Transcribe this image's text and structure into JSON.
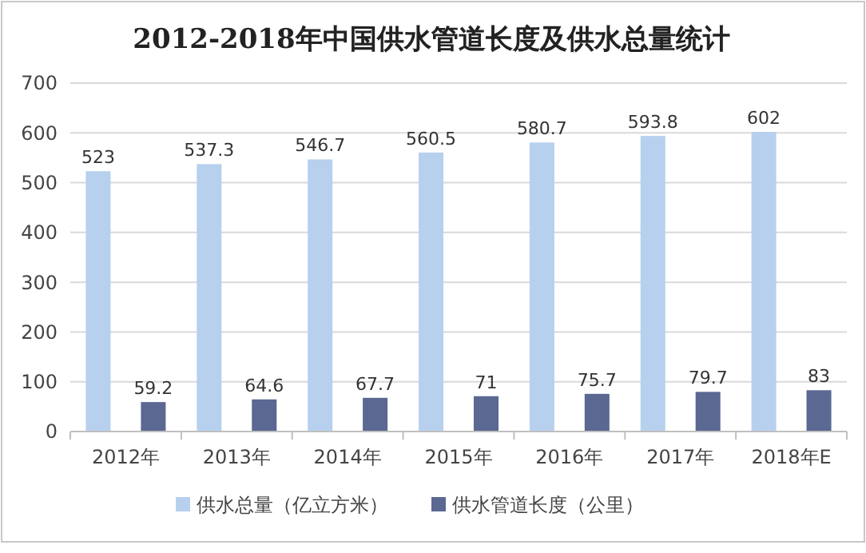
{
  "chart_data": {
    "type": "bar",
    "title": "2012-2018年中国供水管道长度及供水总量统计",
    "categories": [
      "2012年",
      "2013年",
      "2014年",
      "2015年",
      "2016年",
      "2017年",
      "2018年E"
    ],
    "series": [
      {
        "name": "供水总量（亿立方米）",
        "color": "#b7d0ee",
        "values": [
          523,
          537.3,
          546.7,
          560.5,
          580.7,
          593.8,
          602
        ]
      },
      {
        "name": "供水管道长度（公里）",
        "color": "#5a6892",
        "values": [
          59.2,
          64.6,
          67.7,
          71,
          75.7,
          79.7,
          83
        ]
      }
    ],
    "ylim": [
      0,
      700
    ],
    "yticks": [
      0,
      100,
      200,
      300,
      400,
      500,
      600,
      700
    ],
    "grid": "y",
    "legend": "bottom",
    "data_labels": true
  }
}
